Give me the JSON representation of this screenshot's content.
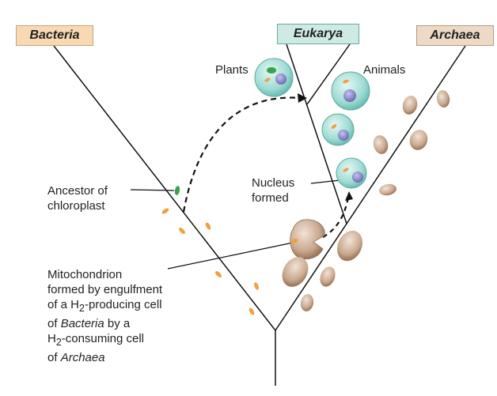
{
  "domains": {
    "bacteria": "Bacteria",
    "eukarya": "Eukarya",
    "archaea": "Archaea"
  },
  "labels": {
    "plants": "Plants",
    "animals": "Animals",
    "ancestor_line1": "Ancestor of",
    "ancestor_line2": "chloroplast",
    "nucleus_line1": "Nucleus",
    "nucleus_line2": "formed",
    "mito_line1": "Mitochondrion",
    "mito_line2": "formed by engulfment",
    "mito_line3_pre": "of a H",
    "mito_line3_sub": "2",
    "mito_line3_post": "-producing cell",
    "mito_line4_pre": "of ",
    "mito_line4_italic": "Bacteria",
    "mito_line4_post": " by a",
    "mito_line5_pre": "H",
    "mito_line5_sub": "2",
    "mito_line5_post": "-consuming cell",
    "mito_line6_pre": "of ",
    "mito_line6_italic": "Archaea"
  },
  "colors": {
    "bacteria_box": "#f8d9b2",
    "eukarya_box": "#cdebe4",
    "archaea_box": "#ecd9c6",
    "euk_cell": "#9fdcd4",
    "nucleus": "#8a86c8",
    "archaeal_cell": "#c9a88e",
    "bacterial_cell": "#f0a040",
    "chloroplast": "#3aa24a"
  }
}
